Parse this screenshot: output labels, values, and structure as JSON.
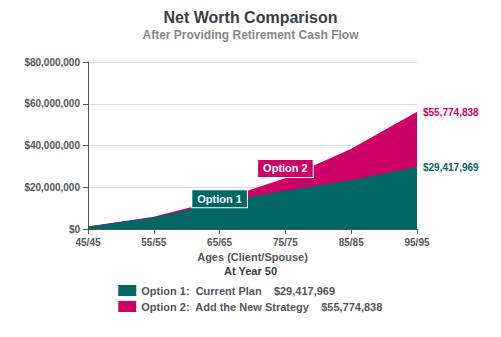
{
  "chart_data": {
    "type": "area",
    "title": "Net Worth Comparison",
    "subtitle": "After Providing Retirement Cash Flow",
    "x_label": "Ages (Client/Spouse)",
    "x": [
      45,
      55,
      65,
      75,
      85,
      95
    ],
    "xlim": [
      45,
      95
    ],
    "xticks": [
      {
        "value": 45,
        "label": "45/45"
      },
      {
        "value": 55,
        "label": "55/55"
      },
      {
        "value": 65,
        "label": "65/65"
      },
      {
        "value": 75,
        "label": "75/75"
      },
      {
        "value": 85,
        "label": "85/85"
      },
      {
        "value": 95,
        "label": "95/95"
      }
    ],
    "ylim": [
      0,
      80000000
    ],
    "yticks": [
      {
        "value": 0,
        "label": "$0"
      },
      {
        "value": 20000000,
        "label": "$20,000,000"
      },
      {
        "value": 40000000,
        "label": "$40,000,000"
      },
      {
        "value": 60000000,
        "label": "$60,000,000"
      },
      {
        "value": 80000000,
        "label": "$80,000,000"
      }
    ],
    "grid": "y",
    "legend": "bottom",
    "legend_title": "At Year 50",
    "series": [
      {
        "name": "Option 1:  Current Plan",
        "color": "#006666",
        "values": [
          800000,
          5200000,
          12500000,
          18000000,
          23000000,
          29417969
        ],
        "value_labels": [
          null,
          null,
          null,
          null,
          null,
          "$29,417,969"
        ]
      },
      {
        "name": "Option 2:  Add the New Strategy",
        "color": "#CC0066",
        "values": [
          800000,
          5500000,
          13500000,
          24000000,
          38000000,
          55774838
        ],
        "value_labels": [
          null,
          null,
          null,
          null,
          null,
          "$55,774,838"
        ]
      }
    ],
    "annotations": [
      {
        "text": "Option 1",
        "x": 65,
        "y": 14500000,
        "color": "#006666"
      },
      {
        "text": "Option 2",
        "x": 75,
        "y": 29000000,
        "color": "#CC0066"
      }
    ]
  }
}
